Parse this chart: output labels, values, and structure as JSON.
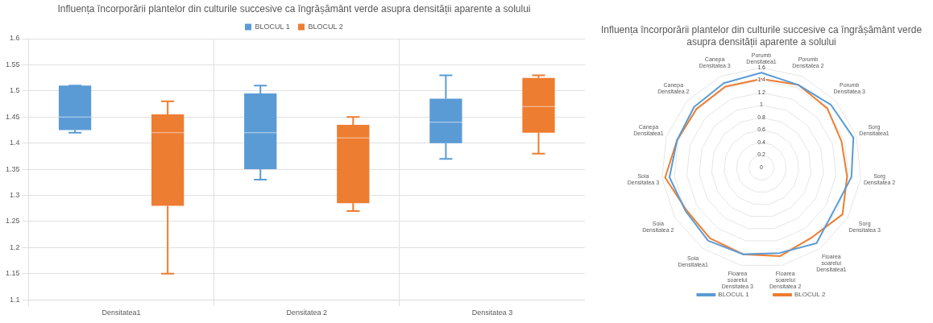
{
  "chart_data": [
    {
      "type": "box",
      "title": "Influența încorporării plantelor din culturile succesive ca îngrășământ verde asupra densității aparente a solului",
      "categories": [
        "Densitatea1",
        "Densitatea 2",
        "Densitatea 3"
      ],
      "ylim": [
        1.1,
        1.6
      ],
      "yticks": [
        1.1,
        1.15,
        1.2,
        1.25,
        1.3,
        1.35,
        1.4,
        1.45,
        1.5,
        1.55,
        1.6
      ],
      "grid": true,
      "legend": "top",
      "series": [
        {
          "name": "BLOCUL 1",
          "color": "#5b9bd5",
          "boxes": [
            {
              "low": 1.42,
              "q1": 1.425,
              "median": 1.45,
              "q3": 1.51,
              "high": 1.51
            },
            {
              "low": 1.33,
              "q1": 1.35,
              "median": 1.42,
              "q3": 1.495,
              "high": 1.51
            },
            {
              "low": 1.37,
              "q1": 1.4,
              "median": 1.44,
              "q3": 1.485,
              "high": 1.53
            }
          ]
        },
        {
          "name": "BLOCUL 2",
          "color": "#ed7d31",
          "boxes": [
            {
              "low": 1.15,
              "q1": 1.28,
              "median": 1.42,
              "q3": 1.455,
              "high": 1.48
            },
            {
              "low": 1.27,
              "q1": 1.285,
              "median": 1.41,
              "q3": 1.435,
              "high": 1.45
            },
            {
              "low": 1.38,
              "q1": 1.42,
              "median": 1.47,
              "q3": 1.525,
              "high": 1.53
            }
          ]
        }
      ]
    },
    {
      "type": "radar",
      "title": "Influența încorporării plantelor din culturile succesive ca îngrășământ verde asupra densității aparente a solului",
      "categories": [
        "Porumb Densitatea1",
        "Porumb Densitatea 2",
        "Porumb Densitatea 3",
        "Sorg Densitatea1",
        "Sorg Densitatea 2",
        "Sorg Densitatea 3",
        "Floarea soarelui Densitatea1",
        "Floarea soarelui Densitatea 2",
        "Floarea soarelui Densitatea 3",
        "Soia Densitatea1",
        "Soia Densitatea 2",
        "Soia Densitatea 3",
        "Canepa Densitatea1",
        "Canepa Densitatea 2",
        "Canepa Densitatea 3"
      ],
      "ylim": [
        0,
        1.6
      ],
      "yticks": [
        0,
        0.2,
        0.4,
        0.6,
        0.8,
        1,
        1.2,
        1.4,
        1.6
      ],
      "legend": "bottom",
      "series": [
        {
          "name": "BLOCUL 1",
          "color": "#5b9bd5",
          "values": [
            1.52,
            1.45,
            1.5,
            1.55,
            1.45,
            1.35,
            1.5,
            1.4,
            1.42,
            1.45,
            1.4,
            1.48,
            1.42,
            1.45,
            1.48
          ]
        },
        {
          "name": "BLOCUL 2",
          "color": "#ed7d31",
          "values": [
            1.42,
            1.45,
            1.42,
            1.35,
            1.38,
            1.5,
            1.38,
            1.45,
            1.42,
            1.4,
            1.38,
            1.55,
            1.42,
            1.4,
            1.42
          ]
        }
      ]
    }
  ]
}
